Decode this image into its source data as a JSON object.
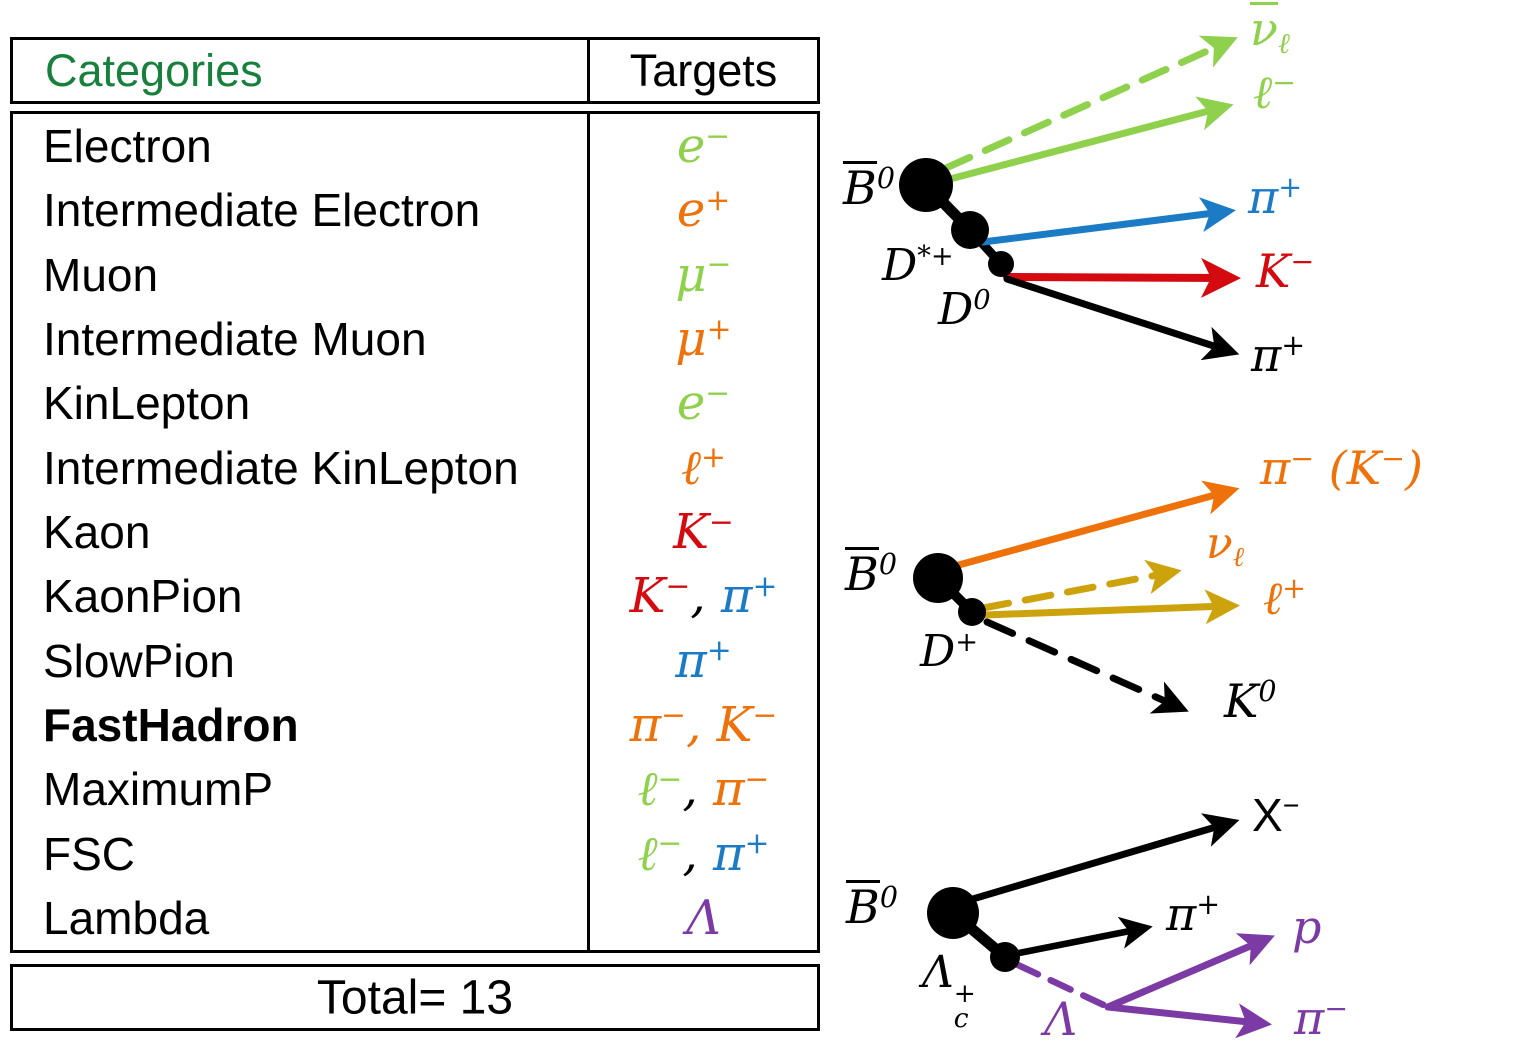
{
  "colors": {
    "green": "#8fd04c",
    "dark_green": "#17803d",
    "orange": "#ee7109",
    "red": "#d40a10",
    "blue": "#1b7bc4",
    "purple": "#7c3aa5",
    "gold": "#cda30d",
    "black": "#000000"
  },
  "table": {
    "header": {
      "categories": "Categories",
      "targets": "Targets"
    },
    "rows": [
      {
        "category": "Electron",
        "bold": false,
        "targets": [
          {
            "color": "green",
            "segs": [
              [
                "b",
                "e"
              ],
              [
                "sup",
                "−"
              ]
            ]
          }
        ]
      },
      {
        "category": "Intermediate Electron",
        "bold": false,
        "targets": [
          {
            "color": "orange",
            "segs": [
              [
                "b",
                "e"
              ],
              [
                "sup",
                "+"
              ]
            ]
          }
        ]
      },
      {
        "category": "Muon",
        "bold": false,
        "targets": [
          {
            "color": "green",
            "segs": [
              [
                "b",
                "μ"
              ],
              [
                "sup",
                "−"
              ]
            ]
          }
        ]
      },
      {
        "category": "Intermediate Muon",
        "bold": false,
        "targets": [
          {
            "color": "orange",
            "segs": [
              [
                "b",
                "μ"
              ],
              [
                "sup",
                "+"
              ]
            ]
          }
        ]
      },
      {
        "category": "KinLepton",
        "bold": false,
        "targets": [
          {
            "color": "green",
            "segs": [
              [
                "b",
                "e"
              ],
              [
                "sup",
                "−"
              ]
            ]
          }
        ]
      },
      {
        "category": "Intermediate KinLepton",
        "bold": false,
        "targets": [
          {
            "color": "orange",
            "segs": [
              [
                "b",
                "ℓ"
              ],
              [
                "sup",
                "+"
              ]
            ]
          }
        ]
      },
      {
        "category": "Kaon",
        "bold": false,
        "targets": [
          {
            "color": "red",
            "segs": [
              [
                "b",
                "K"
              ],
              [
                "sup",
                "−"
              ]
            ]
          }
        ]
      },
      {
        "category": "KaonPion",
        "bold": false,
        "targets": [
          {
            "color": "red",
            "segs": [
              [
                "b",
                "K"
              ],
              [
                "sup",
                "−"
              ]
            ]
          },
          {
            "color": "black",
            "segs": [
              [
                "b",
                ", "
              ]
            ]
          },
          {
            "color": "blue",
            "segs": [
              [
                "b",
                "π"
              ],
              [
                "sup",
                "+"
              ]
            ]
          }
        ]
      },
      {
        "category": "SlowPion",
        "bold": false,
        "targets": [
          {
            "color": "blue",
            "segs": [
              [
                "b",
                "π"
              ],
              [
                "sup",
                "+"
              ]
            ]
          }
        ]
      },
      {
        "category": "FastHadron",
        "bold": true,
        "targets": [
          {
            "color": "orange",
            "segs": [
              [
                "b",
                "π"
              ],
              [
                "sup",
                "−"
              ],
              [
                "b",
                ", "
              ],
              [
                "b",
                "K"
              ],
              [
                "sup",
                "−"
              ]
            ]
          }
        ]
      },
      {
        "category": "MaximumP",
        "bold": false,
        "targets": [
          {
            "color": "green",
            "segs": [
              [
                "b",
                "ℓ"
              ],
              [
                "sup",
                "−"
              ]
            ]
          },
          {
            "color": "black",
            "segs": [
              [
                "b",
                ", "
              ]
            ]
          },
          {
            "color": "orange",
            "segs": [
              [
                "b",
                "π"
              ],
              [
                "sup",
                "−"
              ]
            ]
          }
        ]
      },
      {
        "category": "FSC",
        "bold": false,
        "targets": [
          {
            "color": "green",
            "segs": [
              [
                "b",
                "ℓ"
              ],
              [
                "sup",
                "−"
              ]
            ]
          },
          {
            "color": "black",
            "segs": [
              [
                "b",
                ", "
              ]
            ]
          },
          {
            "color": "blue",
            "segs": [
              [
                "b",
                "π"
              ],
              [
                "sup",
                "+"
              ]
            ]
          }
        ]
      },
      {
        "category": "Lambda",
        "bold": false,
        "targets": [
          {
            "color": "purple",
            "segs": [
              [
                "b",
                "Λ"
              ]
            ]
          }
        ]
      }
    ],
    "total": "Total= 13"
  },
  "diagrams": {
    "top": {
      "labels": {
        "b0": [
          {
            "color": "black",
            "segs": [
              [
                "bar",
                "B"
              ],
              [
                "sup",
                "0"
              ]
            ]
          }
        ],
        "dstar": [
          {
            "color": "black",
            "segs": [
              [
                "b",
                "D"
              ],
              [
                "sup",
                "*+"
              ]
            ]
          }
        ],
        "d0": [
          {
            "color": "black",
            "segs": [
              [
                "b",
                "D"
              ],
              [
                "sup",
                "0"
              ]
            ]
          }
        ],
        "nubar": [
          {
            "color": "green",
            "segs": [
              [
                "bar",
                "ν"
              ],
              [
                "sub",
                "ℓ"
              ]
            ]
          }
        ],
        "lminus": [
          {
            "color": "green",
            "segs": [
              [
                "b",
                "ℓ"
              ],
              [
                "sup",
                "−"
              ]
            ]
          }
        ],
        "pi_slow": [
          {
            "color": "blue",
            "segs": [
              [
                "b",
                "π"
              ],
              [
                "sup",
                "+"
              ]
            ]
          }
        ],
        "kminus": [
          {
            "color": "red",
            "segs": [
              [
                "b",
                "K"
              ],
              [
                "sup",
                "−"
              ]
            ]
          }
        ],
        "pi_d0": [
          {
            "color": "black",
            "segs": [
              [
                "b",
                "π"
              ],
              [
                "sup",
                "+"
              ]
            ]
          }
        ]
      }
    },
    "middle": {
      "labels": {
        "b0": [
          {
            "color": "black",
            "segs": [
              [
                "bar",
                "B"
              ],
              [
                "sup",
                "0"
              ]
            ]
          }
        ],
        "dplus": [
          {
            "color": "black",
            "segs": [
              [
                "b",
                "D"
              ],
              [
                "sup",
                "+"
              ]
            ]
          }
        ],
        "pik": [
          {
            "color": "orange",
            "segs": [
              [
                "b",
                "π"
              ],
              [
                "sup",
                "−"
              ],
              [
                "b",
                "  ("
              ],
              [
                "b",
                "K"
              ],
              [
                "sup",
                "−"
              ],
              [
                "b",
                ")"
              ]
            ]
          }
        ],
        "nul": [
          {
            "color": "orange",
            "segs": [
              [
                "b",
                "ν"
              ],
              [
                "sub",
                "ℓ"
              ]
            ]
          }
        ],
        "lplus": [
          {
            "color": "orange",
            "segs": [
              [
                "b",
                "ℓ"
              ],
              [
                "sup",
                "+"
              ]
            ]
          }
        ],
        "k0": [
          {
            "color": "black",
            "segs": [
              [
                "b",
                "K"
              ],
              [
                "sup",
                "0"
              ]
            ]
          }
        ]
      }
    },
    "bottom": {
      "labels": {
        "b0": [
          {
            "color": "black",
            "segs": [
              [
                "bar",
                "B"
              ],
              [
                "sup",
                "0"
              ]
            ]
          }
        ],
        "lambdac": [
          {
            "color": "black",
            "segs": [
              [
                "b",
                "Λ"
              ],
              [
                "ss",
                "+",
                "c"
              ]
            ]
          }
        ],
        "xminus": [
          {
            "color": "black",
            "segs": [
              [
                "b",
                "X"
              ],
              [
                "sup",
                "−"
              ]
            ]
          }
        ],
        "piplus": [
          {
            "color": "black",
            "segs": [
              [
                "b",
                "π"
              ],
              [
                "sup",
                "+"
              ]
            ]
          }
        ],
        "lambda": [
          {
            "color": "purple",
            "segs": [
              [
                "b",
                "Λ"
              ]
            ]
          }
        ],
        "proton": [
          {
            "color": "purple",
            "segs": [
              [
                "b",
                "p"
              ]
            ]
          }
        ],
        "piminus": [
          {
            "color": "purple",
            "segs": [
              [
                "b",
                "π"
              ],
              [
                "sup",
                "−"
              ]
            ]
          }
        ]
      }
    }
  }
}
